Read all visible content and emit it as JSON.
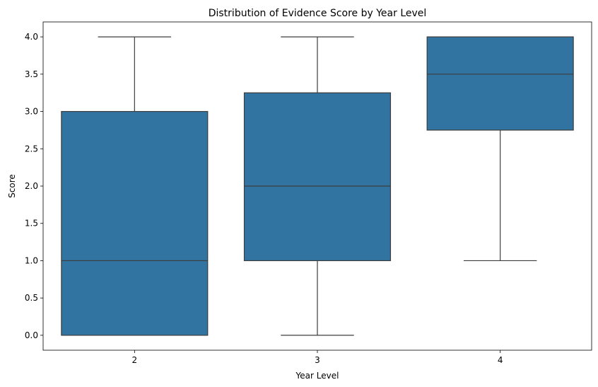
{
  "chart_data": {
    "type": "box",
    "title": "Distribution of Evidence Score by Year Level",
    "xlabel": "Year Level",
    "ylabel": "Score",
    "categories": [
      "2",
      "3",
      "4"
    ],
    "ylim": [
      -0.2,
      4.2
    ],
    "yticks": [
      "0.0",
      "0.5",
      "1.0",
      "1.5",
      "2.0",
      "2.5",
      "3.0",
      "3.5",
      "4.0"
    ],
    "grid": false,
    "box_color": "#3274a1",
    "line_color": "#3d3d3d",
    "boxes": [
      {
        "category": "2",
        "whisker_low": 0.0,
        "q1": 0.0,
        "median": 1.0,
        "q3": 3.0,
        "whisker_high": 4.0
      },
      {
        "category": "3",
        "whisker_low": 0.0,
        "q1": 1.0,
        "median": 2.0,
        "q3": 3.25,
        "whisker_high": 4.0
      },
      {
        "category": "4",
        "whisker_low": 1.0,
        "q1": 2.75,
        "median": 3.5,
        "q3": 4.0,
        "whisker_high": 4.0
      }
    ]
  }
}
